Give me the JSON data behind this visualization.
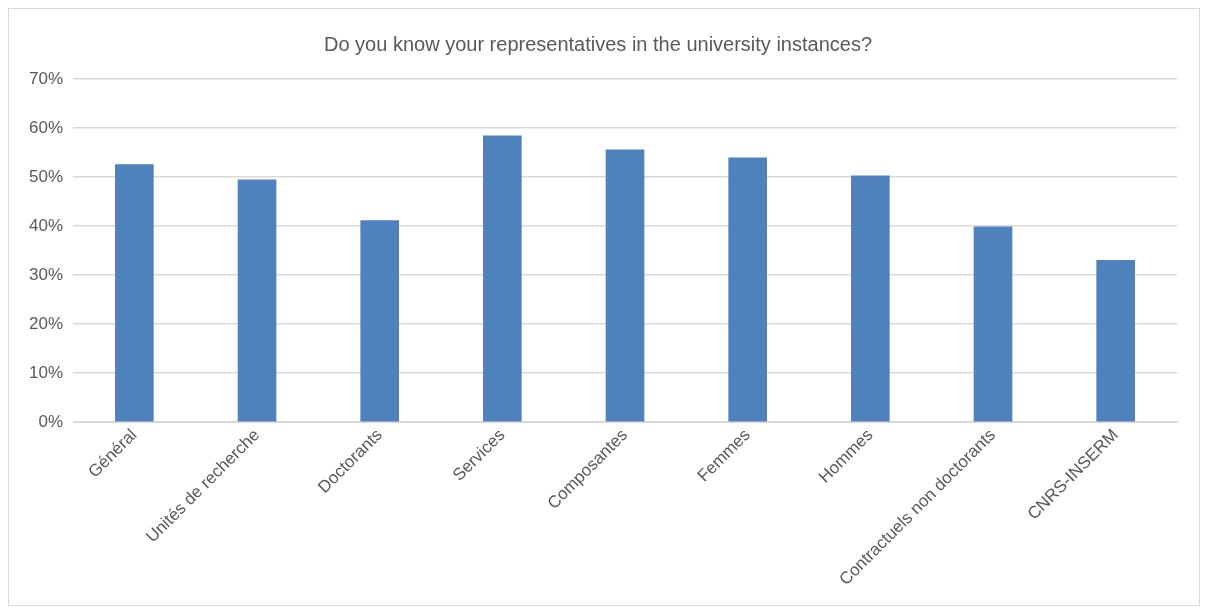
{
  "chart_data": {
    "type": "bar",
    "title": "Do you know your representatives in the university instances?",
    "categories": [
      "Général",
      "Unités de recherche",
      "Doctorants",
      "Services",
      "Composantes",
      "Femmes",
      "Hommes",
      "Contractuels non doctorants",
      "CNRS-INSERM"
    ],
    "values": [
      52.6,
      49.5,
      41.2,
      58.5,
      55.6,
      54,
      50.3,
      39.9,
      33.1
    ],
    "color": "#4f81bd",
    "ylim": [
      0,
      70
    ],
    "yticks": [
      {
        "value": 0,
        "label": "0%"
      },
      {
        "value": 10,
        "label": "10%"
      },
      {
        "value": 20,
        "label": "20%"
      },
      {
        "value": 30,
        "label": "30%"
      },
      {
        "value": 40,
        "label": "40%"
      },
      {
        "value": 50,
        "label": "50%"
      },
      {
        "value": 60,
        "label": "60%"
      },
      {
        "value": 70,
        "label": "70%"
      }
    ],
    "grid": "y",
    "legend": false
  }
}
